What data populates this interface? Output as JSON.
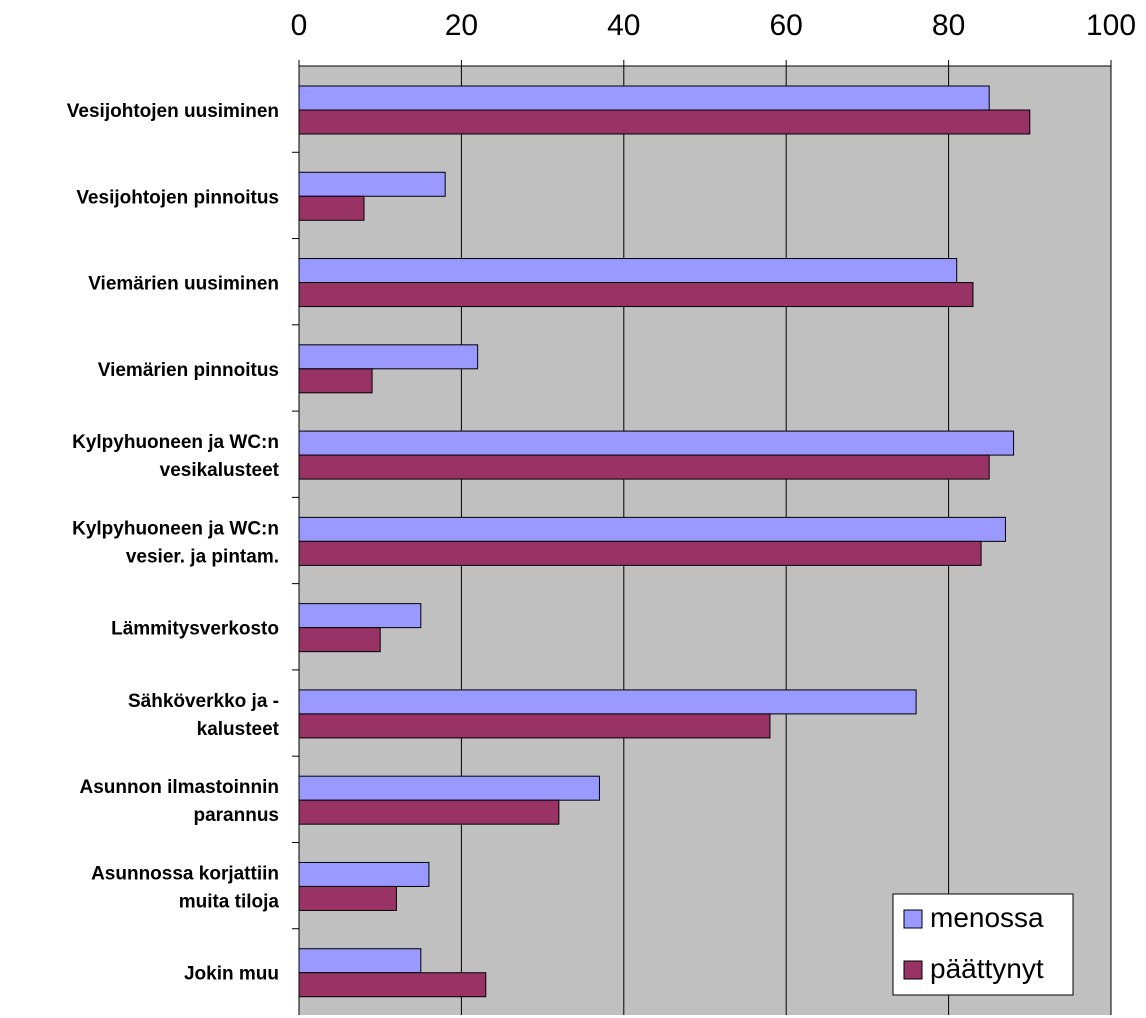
{
  "chart_data": {
    "type": "bar",
    "orientation": "horizontal",
    "categories": [
      [
        "Vesijohtojen uusiminen"
      ],
      [
        "Vesijohtojen pinnoitus"
      ],
      [
        "Viemärien uusiminen"
      ],
      [
        "Viemärien pinnoitus"
      ],
      [
        "Kylpyhuoneen ja WC:n",
        "vesikalusteet"
      ],
      [
        "Kylpyhuoneen ja WC:n",
        "vesier. ja pintam."
      ],
      [
        "Lämmitysverkosto"
      ],
      [
        "Sähköverkko ja -",
        "kalusteet"
      ],
      [
        "Asunnon ilmastoinnin",
        "parannus"
      ],
      [
        "Asunnossa korjattiin",
        "muita tiloja"
      ],
      [
        "Jokin muu"
      ]
    ],
    "series": [
      {
        "name": "menossa",
        "color": "#9999ff",
        "values": [
          85,
          18,
          81,
          22,
          88,
          87,
          15,
          76,
          37,
          16,
          15
        ]
      },
      {
        "name": "päättynyt",
        "color": "#993366",
        "values": [
          90,
          8,
          83,
          9,
          85,
          84,
          10,
          58,
          32,
          12,
          23
        ]
      }
    ],
    "xlim": [
      0,
      100
    ],
    "xticks": [
      "0",
      "20",
      "40",
      "60",
      "80",
      "100"
    ],
    "x_axis_position": "top",
    "grid": true,
    "plot_background": "#c0c0c0",
    "legend_position": "bottom-right",
    "title": "",
    "xlabel": "",
    "ylabel": ""
  }
}
